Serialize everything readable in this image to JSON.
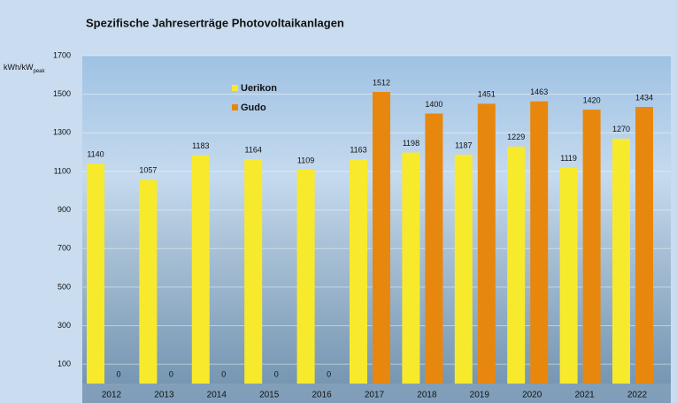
{
  "chart_data": {
    "type": "bar",
    "title": "Spezifische Jahreserträge Photovoltaikanlagen",
    "y_label": "kWh/kW",
    "y_label_sub": "peak",
    "categories": [
      "2012",
      "2013",
      "2014",
      "2015",
      "2016",
      "2017",
      "2018",
      "2019",
      "2020",
      "2021",
      "2022"
    ],
    "series": [
      {
        "name": "Uerikon",
        "color": "#f7ea2c",
        "values": [
          1140,
          1057,
          1183,
          1164,
          1109,
          1163,
          1198,
          1187,
          1229,
          1119,
          1270
        ]
      },
      {
        "name": "Gudo",
        "color": "#e8870e",
        "values": [
          0,
          0,
          0,
          0,
          0,
          1512,
          1400,
          1451,
          1463,
          1420,
          1434
        ]
      }
    ],
    "ylim": [
      0,
      1700
    ],
    "yticks": [
      100,
      300,
      500,
      700,
      900,
      1100,
      1300,
      1500,
      1700
    ],
    "grid": true,
    "legend": "top-left"
  }
}
